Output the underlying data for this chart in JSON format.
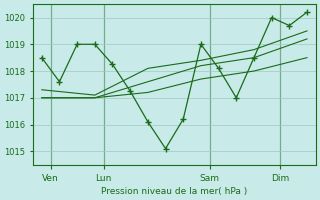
{
  "bg_color": "#c8eae8",
  "grid_color": "#a0c8c0",
  "line_color": "#1a6b1a",
  "axis_color": "#1a6b1a",
  "text_color": "#1a6b1a",
  "ylabel_text": "Pression niveau de la mer( hPa )",
  "ylim": [
    1014.5,
    1020.5
  ],
  "yticks": [
    1015,
    1016,
    1017,
    1018,
    1019,
    1020
  ],
  "day_labels": [
    "Ven",
    "Lun",
    "Sam",
    "Dim"
  ],
  "day_positions": [
    0.5,
    3.5,
    9.5,
    13.5
  ],
  "vlines": [
    0.5,
    3.5,
    9.5,
    13.5
  ],
  "series1": {
    "x": [
      0,
      1,
      2,
      3,
      4,
      5,
      6,
      7,
      8,
      9,
      10,
      11,
      12,
      13,
      14,
      15
    ],
    "y": [
      1018.5,
      1017.6,
      1019.0,
      1019.0,
      1018.25,
      1017.25,
      1016.1,
      1015.1,
      1016.2,
      1019.0,
      1018.1,
      1017.0,
      1018.5,
      1020.0,
      1019.7,
      1020.2
    ]
  },
  "series2": {
    "x": [
      0,
      3,
      6,
      9,
      12,
      15
    ],
    "y": [
      1017.0,
      1017.0,
      1017.2,
      1017.7,
      1018.0,
      1018.5
    ]
  },
  "series3": {
    "x": [
      0,
      3,
      6,
      9,
      12,
      15
    ],
    "y": [
      1017.0,
      1017.0,
      1017.6,
      1018.2,
      1018.5,
      1019.2
    ]
  },
  "series4": {
    "x": [
      0,
      3,
      6,
      9,
      12,
      15
    ],
    "y": [
      1017.3,
      1017.1,
      1018.1,
      1018.4,
      1018.8,
      1019.5
    ]
  }
}
